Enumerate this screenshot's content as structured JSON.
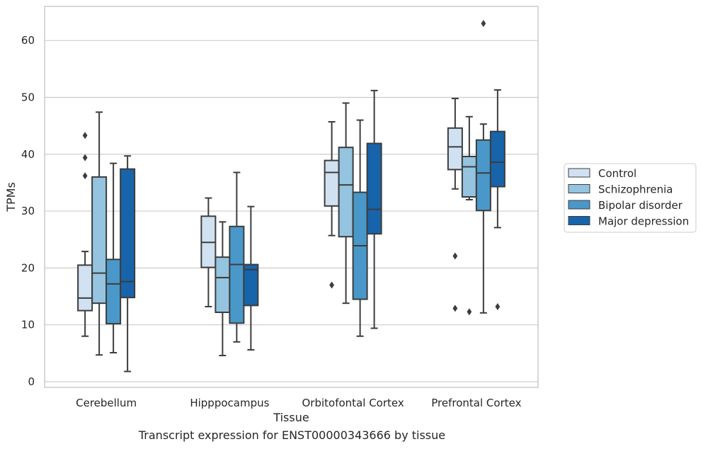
{
  "chart_data": {
    "type": "box",
    "xlabel": "Tissue",
    "ylabel": "TPMs",
    "caption": "Transcript expression for ENST00000343666 by tissue",
    "categories": [
      "Cerebellum",
      "Hipppocampus",
      "Orbitofontal Cortex",
      "Prefrontal Cortex"
    ],
    "ylim": [
      -1,
      66
    ],
    "yticks": [
      0,
      10,
      20,
      30,
      40,
      50,
      60
    ],
    "grid": "horizontal",
    "legend": "right",
    "series": [
      {
        "name": "Control",
        "color": "#d0e1f2",
        "boxes": [
          {
            "whisker_low": 8.0,
            "q1": 12.5,
            "median": 14.7,
            "q3": 20.5,
            "whisker_high": 22.9,
            "outliers": [
              36.2,
              39.4,
              43.3
            ]
          },
          {
            "whisker_low": 13.2,
            "q1": 20.1,
            "median": 24.5,
            "q3": 29.1,
            "whisker_high": 32.3,
            "outliers": []
          },
          {
            "whisker_low": 25.7,
            "q1": 30.9,
            "median": 36.8,
            "q3": 38.9,
            "whisker_high": 45.7,
            "outliers": [
              17.0
            ]
          },
          {
            "whisker_low": 33.9,
            "q1": 37.3,
            "median": 41.3,
            "q3": 44.6,
            "whisker_high": 49.8,
            "outliers": [
              12.9,
              22.1
            ]
          }
        ]
      },
      {
        "name": "Schizophrenia",
        "color": "#94c4df",
        "boxes": [
          {
            "whisker_low": 4.7,
            "q1": 13.8,
            "median": 19.1,
            "q3": 36.0,
            "whisker_high": 47.4,
            "outliers": []
          },
          {
            "whisker_low": 4.6,
            "q1": 12.2,
            "median": 18.3,
            "q3": 21.9,
            "whisker_high": 28.1,
            "outliers": []
          },
          {
            "whisker_low": 13.8,
            "q1": 25.5,
            "median": 34.6,
            "q3": 41.2,
            "whisker_high": 49.0,
            "outliers": []
          },
          {
            "whisker_low": 32.0,
            "q1": 32.5,
            "median": 37.8,
            "q3": 39.6,
            "whisker_high": 46.6,
            "outliers": [
              12.3
            ]
          }
        ]
      },
      {
        "name": "Bipolar disorder",
        "color": "#4a98c9",
        "boxes": [
          {
            "whisker_low": 5.1,
            "q1": 10.2,
            "median": 17.2,
            "q3": 21.5,
            "whisker_high": 38.4,
            "outliers": []
          },
          {
            "whisker_low": 7.0,
            "q1": 10.3,
            "median": 20.6,
            "q3": 27.3,
            "whisker_high": 36.8,
            "outliers": []
          },
          {
            "whisker_low": 8.0,
            "q1": 14.5,
            "median": 23.9,
            "q3": 33.3,
            "whisker_high": 46.0,
            "outliers": []
          },
          {
            "whisker_low": 12.1,
            "q1": 30.1,
            "median": 36.7,
            "q3": 42.5,
            "whisker_high": 45.3,
            "outliers": [
              63.0
            ]
          }
        ]
      },
      {
        "name": "Major depression",
        "color": "#1764ab",
        "boxes": [
          {
            "whisker_low": 1.8,
            "q1": 14.8,
            "median": 17.6,
            "q3": 37.4,
            "whisker_high": 39.7,
            "outliers": []
          },
          {
            "whisker_low": 5.6,
            "q1": 13.4,
            "median": 19.7,
            "q3": 20.6,
            "whisker_high": 30.8,
            "outliers": []
          },
          {
            "whisker_low": 9.4,
            "q1": 26.0,
            "median": 30.3,
            "q3": 41.9,
            "whisker_high": 51.2,
            "outliers": []
          },
          {
            "whisker_low": 27.1,
            "q1": 34.3,
            "median": 38.6,
            "q3": 44.0,
            "whisker_high": 51.3,
            "outliers": [
              13.2
            ]
          }
        ]
      }
    ]
  }
}
